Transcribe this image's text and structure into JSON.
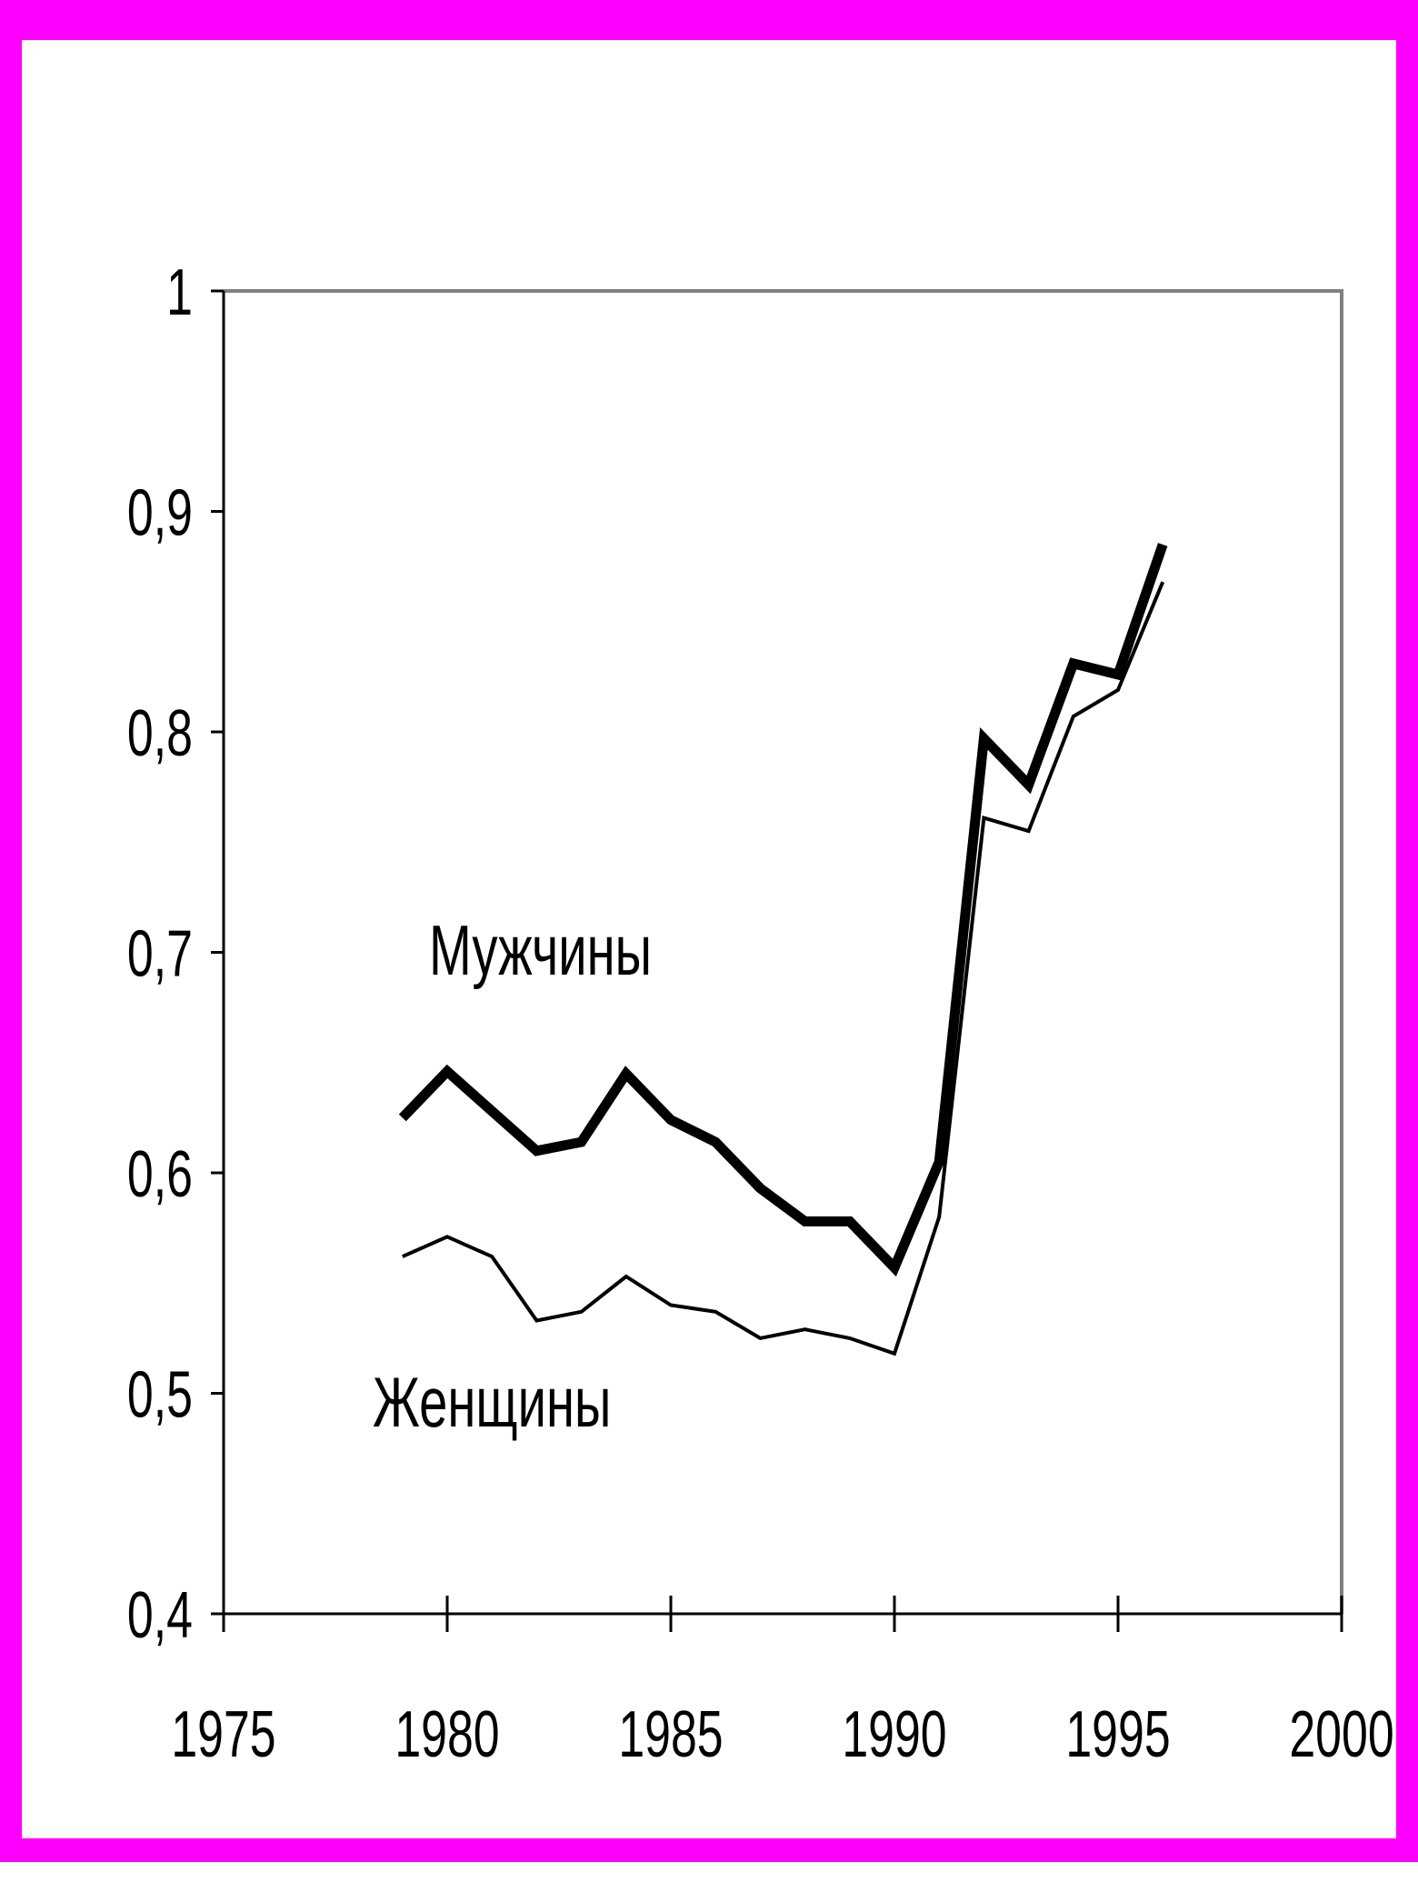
{
  "colors": {
    "frame": "#ff00ff",
    "background": "#ffffff",
    "axis": "#000000",
    "plot_border": "#808080"
  },
  "chart_data": {
    "type": "line",
    "title": "",
    "xlabel": "",
    "ylabel": "",
    "xlim": [
      1975,
      2000
    ],
    "ylim": [
      0.4,
      1.0
    ],
    "x_ticks": [
      1975,
      1980,
      1985,
      1990,
      1995,
      2000
    ],
    "x_tick_labels": [
      "1975",
      "1980",
      "1985",
      "1990",
      "1995",
      "2000"
    ],
    "y_ticks": [
      0.4,
      0.5,
      0.6,
      0.7,
      0.8,
      0.9,
      1.0
    ],
    "y_tick_labels": [
      "0,4",
      "0,5",
      "0,6",
      "0,7",
      "0,8",
      "0,9",
      "1"
    ],
    "grid": false,
    "legend": "none",
    "series": [
      {
        "name": "Мужчины",
        "style": "thick",
        "x": [
          1979,
          1980,
          1981,
          1982,
          1983,
          1984,
          1985,
          1986,
          1987,
          1988,
          1989,
          1990,
          1991,
          1992,
          1993,
          1994,
          1995,
          1996
        ],
        "values": [
          0.625,
          0.646,
          0.628,
          0.61,
          0.614,
          0.645,
          0.624,
          0.614,
          0.593,
          0.578,
          0.578,
          0.557,
          0.605,
          0.797,
          0.776,
          0.831,
          0.826,
          0.885
        ]
      },
      {
        "name": "Женщины",
        "style": "thin",
        "x": [
          1979,
          1980,
          1981,
          1982,
          1983,
          1984,
          1985,
          1986,
          1987,
          1988,
          1989,
          1990,
          1991,
          1992,
          1993,
          1994,
          1995,
          1996
        ],
        "values": [
          0.562,
          0.571,
          0.562,
          0.533,
          0.537,
          0.553,
          0.54,
          0.537,
          0.525,
          0.529,
          0.525,
          0.518,
          0.58,
          0.761,
          0.755,
          0.807,
          0.819,
          0.868
        ]
      }
    ]
  }
}
